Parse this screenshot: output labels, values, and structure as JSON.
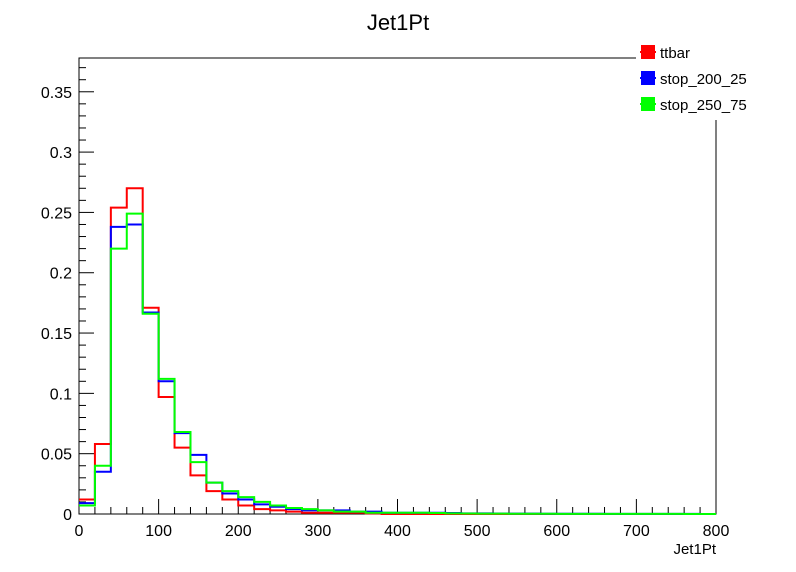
{
  "chart_data": {
    "type": "histogram",
    "title": "Jet1Pt",
    "xlabel": "Jet1Pt",
    "ylabel": "",
    "xlim": [
      0,
      800
    ],
    "ylim": [
      0,
      0.378
    ],
    "grid": false,
    "legend_position": "top-right",
    "bin_width": 20,
    "bin_edges_start": 0,
    "x_ticks": [
      0,
      100,
      200,
      300,
      400,
      500,
      600,
      700,
      800
    ],
    "x_tick_labels": [
      "0",
      "100",
      "200",
      "300",
      "400",
      "500",
      "600",
      "700",
      "800"
    ],
    "y_ticks": [
      0,
      0.05,
      0.1,
      0.15,
      0.2,
      0.25,
      0.3,
      0.35
    ],
    "y_tick_labels": [
      "0",
      "0.05",
      "0.1",
      "0.15",
      "0.2",
      "0.25",
      "0.3",
      "0.35"
    ],
    "series": [
      {
        "name": "ttbar",
        "color": "#ff0000",
        "values": [
          0.012,
          0.058,
          0.254,
          0.27,
          0.171,
          0.097,
          0.055,
          0.032,
          0.019,
          0.012,
          0.007,
          0.004,
          0.003,
          0.002,
          0.001,
          0.001,
          0.001,
          0.001,
          0.0005,
          0,
          0,
          0,
          0,
          0,
          0,
          0,
          0,
          0,
          0,
          0,
          0,
          0,
          0,
          0,
          0,
          0,
          0,
          0,
          0,
          0
        ]
      },
      {
        "name": "stop_200_25",
        "color": "#0000ff",
        "values": [
          0.009,
          0.035,
          0.238,
          0.24,
          0.167,
          0.11,
          0.067,
          0.049,
          0.026,
          0.017,
          0.012,
          0.008,
          0.006,
          0.004,
          0.003,
          0.003,
          0.003,
          0.002,
          0.002,
          0.001,
          0.001,
          0.001,
          0.001,
          0.0008,
          0.0005,
          0.0005,
          0.0004,
          0.0003,
          0.0003,
          0.0002,
          0.0002,
          0.0002,
          0.0002,
          0.0001,
          0.0001,
          0.0001,
          0.0001,
          0.0001,
          0.0001,
          0
        ]
      },
      {
        "name": "stop_250_75",
        "color": "#00ff00",
        "values": [
          0.007,
          0.04,
          0.22,
          0.249,
          0.166,
          0.112,
          0.068,
          0.043,
          0.026,
          0.019,
          0.014,
          0.01,
          0.007,
          0.005,
          0.004,
          0.003,
          0.002,
          0.002,
          0.001,
          0.001,
          0.001,
          0.001,
          0.0008,
          0.0005,
          0.0004,
          0.0003,
          0.0003,
          0.0002,
          0.0002,
          0.0002,
          0.0001,
          0.0001,
          0.0001,
          0.0001,
          0.0001,
          0.0001,
          0.0001,
          0.0001,
          0,
          0
        ]
      }
    ]
  }
}
